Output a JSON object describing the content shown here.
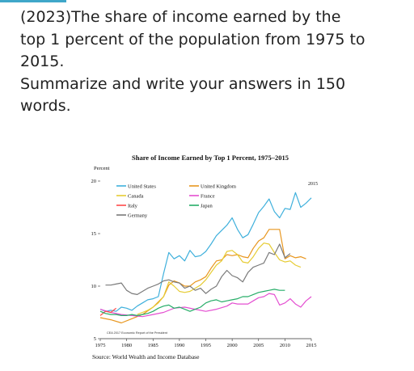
{
  "question": {
    "line1": "(2023)The share of income earned by the",
    "line2": "top 1 percent of the population from 1975 to",
    "line3": "2015.",
    "line4": "Summarize and write your answers in 150",
    "line5": "words."
  },
  "colors": {
    "accent": "#3fa7c9"
  },
  "chart_data": {
    "type": "line",
    "title": "Share of Income Earned by Top 1 Percent, 1975–2015",
    "ylabel": "Percent",
    "xlabel": "",
    "ylim": [
      5,
      20
    ],
    "xlim": [
      1975,
      2015
    ],
    "y_ticks": [
      5,
      10,
      15,
      20
    ],
    "x_ticks": [
      1975,
      1980,
      1985,
      1990,
      1995,
      2000,
      2005,
      2010,
      2015
    ],
    "grid": false,
    "legend_position": "top-left, inside",
    "annotations": {
      "end_label": "2015",
      "credit": "CEA 2017 Economic Report of the President"
    },
    "source": "Source: World Wealth and Income Database",
    "series": [
      {
        "name": "United States",
        "color": "#3fb0dc",
        "points": [
          [
            1975,
            7.8
          ],
          [
            1976,
            7.6
          ],
          [
            1977,
            7.7
          ],
          [
            1978,
            7.6
          ],
          [
            1979,
            8.0
          ],
          [
            1980,
            7.9
          ],
          [
            1981,
            7.7
          ],
          [
            1982,
            8.1
          ],
          [
            1983,
            8.4
          ],
          [
            1984,
            8.7
          ],
          [
            1985,
            8.8
          ],
          [
            1986,
            9.0
          ],
          [
            1987,
            11.2
          ],
          [
            1988,
            13.2
          ],
          [
            1989,
            12.6
          ],
          [
            1990,
            12.9
          ],
          [
            1991,
            12.4
          ],
          [
            1992,
            13.4
          ],
          [
            1993,
            12.8
          ],
          [
            1994,
            12.9
          ],
          [
            1995,
            13.3
          ],
          [
            1996,
            14.0
          ],
          [
            1997,
            14.8
          ],
          [
            1998,
            15.3
          ],
          [
            1999,
            15.8
          ],
          [
            2000,
            16.5
          ],
          [
            2001,
            15.4
          ],
          [
            2002,
            14.6
          ],
          [
            2003,
            14.9
          ],
          [
            2004,
            15.9
          ],
          [
            2005,
            17.0
          ],
          [
            2006,
            17.6
          ],
          [
            2007,
            18.3
          ],
          [
            2008,
            17.1
          ],
          [
            2009,
            16.5
          ],
          [
            2010,
            17.4
          ],
          [
            2011,
            17.3
          ],
          [
            2012,
            18.9
          ],
          [
            2013,
            17.5
          ],
          [
            2014,
            17.9
          ],
          [
            2015,
            18.4
          ]
        ]
      },
      {
        "name": "United Kingdom",
        "color": "#e8961e",
        "points": [
          [
            1975,
            7.0
          ],
          [
            1977,
            6.8
          ],
          [
            1979,
            6.5
          ],
          [
            1981,
            6.9
          ],
          [
            1983,
            7.3
          ],
          [
            1985,
            8.0
          ],
          [
            1987,
            9.0
          ],
          [
            1988,
            10.1
          ],
          [
            1989,
            10.5
          ],
          [
            1990,
            10.3
          ],
          [
            1991,
            10.0
          ],
          [
            1992,
            10.0
          ],
          [
            1993,
            10.4
          ],
          [
            1994,
            10.6
          ],
          [
            1995,
            10.9
          ],
          [
            1996,
            11.7
          ],
          [
            1997,
            12.4
          ],
          [
            1998,
            12.5
          ],
          [
            1999,
            13.0
          ],
          [
            2000,
            12.9
          ],
          [
            2001,
            13.0
          ],
          [
            2002,
            12.8
          ],
          [
            2003,
            12.7
          ],
          [
            2004,
            13.6
          ],
          [
            2005,
            14.3
          ],
          [
            2006,
            14.6
          ],
          [
            2007,
            15.4
          ],
          [
            2008,
            15.4
          ],
          [
            2009,
            15.4
          ],
          [
            2010,
            12.6
          ],
          [
            2011,
            12.9
          ],
          [
            2012,
            12.7
          ],
          [
            2013,
            12.8
          ],
          [
            2014,
            12.6
          ]
        ]
      },
      {
        "name": "Canada",
        "color": "#e6cc34",
        "points": [
          [
            1982,
            7.3
          ],
          [
            1983,
            7.5
          ],
          [
            1984,
            7.7
          ],
          [
            1985,
            8.0
          ],
          [
            1986,
            8.4
          ],
          [
            1987,
            9.0
          ],
          [
            1988,
            10.4
          ],
          [
            1989,
            10.0
          ],
          [
            1990,
            9.5
          ],
          [
            1991,
            9.4
          ],
          [
            1992,
            9.5
          ],
          [
            1993,
            9.8
          ],
          [
            1994,
            10.1
          ],
          [
            1995,
            10.6
          ],
          [
            1996,
            11.3
          ],
          [
            1997,
            12.0
          ],
          [
            1998,
            12.4
          ],
          [
            1999,
            13.3
          ],
          [
            2000,
            13.4
          ],
          [
            2001,
            13.0
          ],
          [
            2002,
            12.3
          ],
          [
            2003,
            12.2
          ],
          [
            2004,
            12.8
          ],
          [
            2005,
            13.6
          ],
          [
            2006,
            14.1
          ],
          [
            2007,
            14.0
          ],
          [
            2008,
            13.2
          ],
          [
            2009,
            12.5
          ],
          [
            2010,
            12.3
          ],
          [
            2011,
            12.4
          ],
          [
            2012,
            12.0
          ],
          [
            2013,
            11.8
          ]
        ]
      },
      {
        "name": "France",
        "color": "#e44fd1",
        "points": [
          [
            1975,
            7.8
          ],
          [
            1977,
            7.5
          ],
          [
            1979,
            7.3
          ],
          [
            1981,
            7.2
          ],
          [
            1983,
            7.1
          ],
          [
            1985,
            7.3
          ],
          [
            1987,
            7.5
          ],
          [
            1989,
            7.9
          ],
          [
            1991,
            8.0
          ],
          [
            1993,
            7.8
          ],
          [
            1995,
            7.6
          ],
          [
            1997,
            7.8
          ],
          [
            1999,
            8.1
          ],
          [
            2000,
            8.4
          ],
          [
            2001,
            8.3
          ],
          [
            2003,
            8.3
          ],
          [
            2004,
            8.6
          ],
          [
            2005,
            8.9
          ],
          [
            2006,
            9.0
          ],
          [
            2007,
            9.3
          ],
          [
            2008,
            9.2
          ],
          [
            2009,
            8.2
          ],
          [
            2010,
            8.4
          ],
          [
            2011,
            8.8
          ],
          [
            2012,
            8.3
          ],
          [
            2013,
            8.0
          ],
          [
            2014,
            8.6
          ],
          [
            2015,
            9.0
          ]
        ]
      },
      {
        "name": "Italy",
        "color": "#ff4a4a",
        "points": [
          [
            1975,
            7.2
          ],
          [
            1976,
            7.6
          ],
          [
            1977,
            7.5
          ],
          [
            1978,
            7.9
          ]
        ]
      },
      {
        "name": "Japan",
        "color": "#26ad68",
        "points": [
          [
            1975,
            7.6
          ],
          [
            1976,
            7.4
          ],
          [
            1977,
            7.3
          ],
          [
            1978,
            7.3
          ],
          [
            1979,
            7.2
          ],
          [
            1980,
            7.2
          ],
          [
            1981,
            7.3
          ],
          [
            1982,
            7.2
          ],
          [
            1983,
            7.3
          ],
          [
            1984,
            7.4
          ],
          [
            1985,
            7.6
          ],
          [
            1986,
            7.9
          ],
          [
            1987,
            8.1
          ],
          [
            1988,
            8.2
          ],
          [
            1989,
            7.9
          ],
          [
            1990,
            8.0
          ],
          [
            1991,
            7.8
          ],
          [
            1992,
            7.6
          ],
          [
            1993,
            7.8
          ],
          [
            1994,
            8.0
          ],
          [
            1995,
            8.4
          ],
          [
            1996,
            8.6
          ],
          [
            1997,
            8.7
          ],
          [
            1998,
            8.5
          ],
          [
            1999,
            8.6
          ],
          [
            2000,
            8.7
          ],
          [
            2001,
            8.8
          ],
          [
            2002,
            9.0
          ],
          [
            2003,
            9.0
          ],
          [
            2004,
            9.2
          ],
          [
            2005,
            9.4
          ],
          [
            2006,
            9.5
          ],
          [
            2007,
            9.6
          ],
          [
            2008,
            9.7
          ],
          [
            2009,
            9.6
          ],
          [
            2010,
            9.6
          ]
        ]
      },
      {
        "name": "Germany",
        "color": "#7a7a7a",
        "points": [
          [
            1976,
            10.1
          ],
          [
            1977,
            10.1
          ],
          [
            1978,
            10.2
          ],
          [
            1979,
            10.3
          ],
          [
            1980,
            9.6
          ],
          [
            1981,
            9.3
          ],
          [
            1982,
            9.2
          ],
          [
            1983,
            9.5
          ],
          [
            1984,
            9.8
          ],
          [
            1985,
            10.0
          ],
          [
            1986,
            10.2
          ],
          [
            1987,
            10.5
          ],
          [
            1988,
            10.6
          ],
          [
            1989,
            10.4
          ],
          [
            1990,
            10.3
          ],
          [
            1991,
            9.8
          ],
          [
            1992,
            10.0
          ],
          [
            1993,
            9.6
          ],
          [
            1994,
            9.8
          ],
          [
            1995,
            9.3
          ],
          [
            1996,
            9.7
          ],
          [
            1997,
            10.0
          ],
          [
            1998,
            10.9
          ],
          [
            1999,
            11.5
          ],
          [
            2000,
            11.0
          ],
          [
            2001,
            10.8
          ],
          [
            2002,
            10.4
          ],
          [
            2003,
            11.3
          ],
          [
            2004,
            11.8
          ],
          [
            2005,
            12.0
          ],
          [
            2006,
            12.2
          ],
          [
            2007,
            13.2
          ],
          [
            2008,
            13.0
          ],
          [
            2009,
            14.0
          ],
          [
            2010,
            12.7
          ],
          [
            2011,
            13.1
          ]
        ]
      }
    ]
  }
}
